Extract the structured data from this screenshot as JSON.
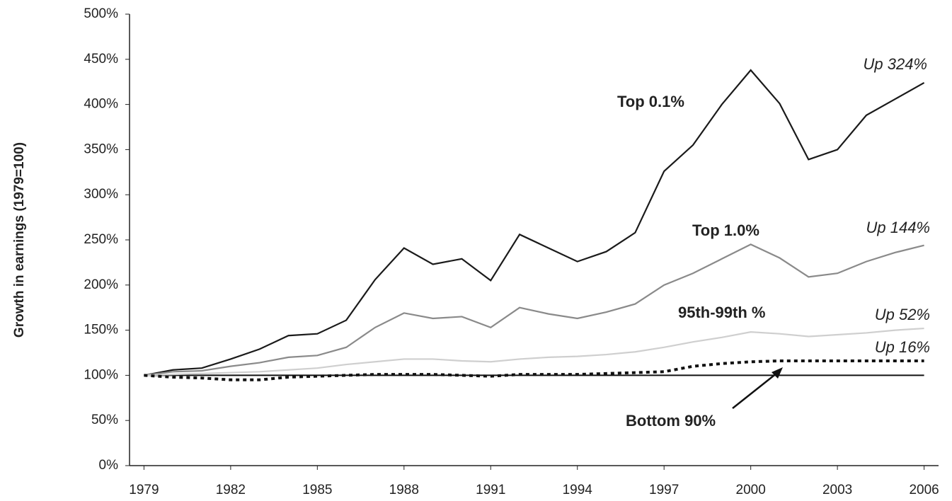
{
  "chart_data": {
    "type": "line",
    "ylabel": "Growth in earnings (1979=100)",
    "x": [
      1979,
      1980,
      1981,
      1982,
      1983,
      1984,
      1985,
      1986,
      1987,
      1988,
      1989,
      1990,
      1991,
      1992,
      1993,
      1994,
      1995,
      1996,
      1997,
      1998,
      1999,
      2000,
      2001,
      2002,
      2003,
      2004,
      2005,
      2006
    ],
    "series": [
      {
        "name": "Top 0.1%",
        "color": "#1a1a1a",
        "values": [
          100,
          106,
          108,
          118,
          129,
          144,
          146,
          161,
          206,
          241,
          223,
          229,
          205,
          256,
          241,
          226,
          237,
          258,
          326,
          355,
          400,
          438,
          401,
          339,
          350,
          388,
          406,
          424
        ]
      },
      {
        "name": "Top 1.0%",
        "color": "#8a8a8a",
        "values": [
          100,
          104,
          105,
          110,
          114,
          120,
          122,
          131,
          153,
          169,
          163,
          165,
          153,
          175,
          168,
          163,
          170,
          179,
          200,
          213,
          229,
          245,
          230,
          209,
          213,
          226,
          236,
          244
        ]
      },
      {
        "name": "95th-99th %",
        "color": "#cfcfcf",
        "values": [
          100,
          101,
          102,
          103,
          104,
          106,
          108,
          112,
          115,
          118,
          118,
          116,
          115,
          118,
          120,
          121,
          123,
          126,
          131,
          137,
          142,
          148,
          146,
          143,
          145,
          147,
          150,
          152
        ]
      },
      {
        "name": "Bottom 90%",
        "color": "#111111",
        "dashed": true,
        "values": [
          100,
          98,
          97,
          95,
          95,
          98,
          99,
          100,
          101,
          101,
          101,
          100,
          99,
          101,
          101,
          101,
          102,
          103,
          104,
          110,
          113,
          115,
          116,
          116,
          116,
          116,
          116,
          116
        ]
      }
    ],
    "reference_line": 100,
    "annotations": [
      "Up 324%",
      "Up 144%",
      "Up 52%",
      "Up 16%"
    ],
    "xlim": [
      1978.5,
      2006.5
    ],
    "xticks": [
      1979,
      1982,
      1985,
      1988,
      1991,
      1994,
      1997,
      2000,
      2003,
      2006
    ],
    "ylim": [
      0,
      500
    ],
    "yticks": [
      {
        "value": 0,
        "label": "0%"
      },
      {
        "value": 50,
        "label": "50%"
      },
      {
        "value": 100,
        "label": "100%"
      },
      {
        "value": 150,
        "label": "150%"
      },
      {
        "value": 200,
        "label": "200%"
      },
      {
        "value": 250,
        "label": "250%"
      },
      {
        "value": 300,
        "label": "300%"
      },
      {
        "value": 350,
        "label": "350%"
      },
      {
        "value": 400,
        "label": "400%"
      },
      {
        "value": 450,
        "label": "450%"
      },
      {
        "value": 500,
        "label": "500%"
      }
    ]
  }
}
